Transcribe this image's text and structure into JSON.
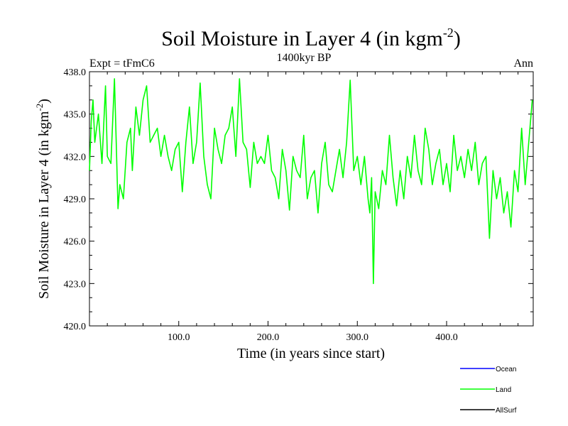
{
  "chart_data": {
    "type": "line",
    "title_main": "Soil Moisture in Layer 4 (in kgm",
    "title_sup": "-2",
    "title_close": ")",
    "subtitle_left": "Expt = tFmC6",
    "subtitle_center": "1400kyr BP",
    "subtitle_right": "Ann",
    "xlabel": "Time (in years since start)",
    "ylabel_main": "Soil Moisture in Layer 4 (in kgm",
    "ylabel_sup": "-2",
    "ylabel_close": ")",
    "xlim": [
      0,
      497
    ],
    "ylim": [
      420.0,
      438.0
    ],
    "xticks": [
      100,
      200,
      300,
      400
    ],
    "xtick_labels": [
      "100.0",
      "200.0",
      "300.0",
      "400.0"
    ],
    "yticks": [
      420,
      423,
      426,
      429,
      432,
      435,
      438
    ],
    "ytick_labels": [
      "420.0",
      "423.0",
      "426.0",
      "429.0",
      "432.0",
      "435.0",
      "438.0"
    ],
    "legend": [
      {
        "name": "Ocean",
        "color": "#0000ff"
      },
      {
        "name": "Land",
        "color": "#00ff00"
      },
      {
        "name": "AllSurf",
        "color": "#000000"
      }
    ],
    "series": [
      {
        "name": "Land",
        "color": "#00ff00",
        "x": [
          0,
          2,
          4,
          6,
          10,
          14,
          18,
          20,
          24,
          28,
          30,
          32,
          34,
          38,
          42,
          46,
          48,
          52,
          56,
          60,
          64,
          68,
          72,
          76,
          80,
          84,
          88,
          92,
          96,
          100,
          104,
          108,
          112,
          116,
          120,
          124,
          128,
          132,
          136,
          140,
          144,
          148,
          152,
          156,
          160,
          164,
          168,
          172,
          176,
          180,
          184,
          188,
          192,
          196,
          200,
          204,
          208,
          212,
          216,
          220,
          224,
          228,
          232,
          236,
          240,
          244,
          248,
          252,
          256,
          260,
          264,
          268,
          272,
          276,
          280,
          284,
          288,
          292,
          296,
          300,
          304,
          308,
          312,
          314,
          316,
          318,
          320,
          324,
          328,
          332,
          336,
          340,
          344,
          348,
          352,
          356,
          360,
          364,
          368,
          372,
          376,
          380,
          384,
          388,
          392,
          396,
          400,
          404,
          408,
          412,
          416,
          420,
          424,
          428,
          432,
          436,
          440,
          444,
          448,
          452,
          456,
          460,
          464,
          468,
          472,
          476,
          480,
          484,
          488,
          492,
          496
        ],
        "values": [
          431.0,
          434.5,
          436.0,
          433.0,
          435.0,
          431.5,
          437.0,
          432.0,
          431.5,
          437.5,
          433.0,
          428.3,
          430.0,
          429.0,
          433.0,
          434.0,
          431.0,
          435.5,
          433.5,
          436.0,
          437.0,
          433.0,
          433.5,
          434.0,
          432.0,
          433.5,
          432.0,
          431.0,
          432.5,
          433.0,
          429.5,
          433.0,
          435.5,
          431.5,
          433.0,
          437.2,
          432.0,
          430.0,
          429.0,
          434.0,
          432.5,
          431.5,
          433.5,
          434.0,
          435.5,
          432.0,
          437.5,
          433.0,
          432.5,
          429.8,
          433.0,
          431.5,
          432.0,
          431.5,
          433.5,
          431.0,
          430.5,
          429.0,
          432.5,
          431.0,
          428.2,
          432.0,
          431.0,
          430.5,
          433.5,
          429.0,
          430.5,
          431.0,
          428.0,
          431.5,
          433.0,
          430.0,
          429.5,
          431.0,
          432.5,
          430.5,
          433.0,
          437.4,
          431.0,
          432.0,
          430.0,
          432.0,
          429.0,
          428.0,
          430.5,
          423.0,
          429.5,
          428.3,
          431.0,
          430.0,
          433.5,
          430.5,
          428.5,
          431.0,
          429.0,
          432.0,
          430.5,
          433.5,
          431.0,
          430.0,
          434.0,
          432.5,
          430.0,
          431.5,
          432.5,
          430.0,
          431.5,
          429.5,
          433.5,
          431.0,
          432.0,
          430.5,
          432.5,
          431.0,
          433.0,
          430.0,
          431.5,
          432.0,
          426.2,
          431.0,
          429.0,
          430.5,
          428.0,
          429.5,
          427.0,
          431.0,
          429.5,
          434.0,
          430.0,
          433.0,
          436.0
        ]
      },
      {
        "name": "Ocean",
        "color": "#0000ff",
        "x": [],
        "values": []
      },
      {
        "name": "AllSurf",
        "color": "#000000",
        "x": [],
        "values": []
      }
    ]
  }
}
